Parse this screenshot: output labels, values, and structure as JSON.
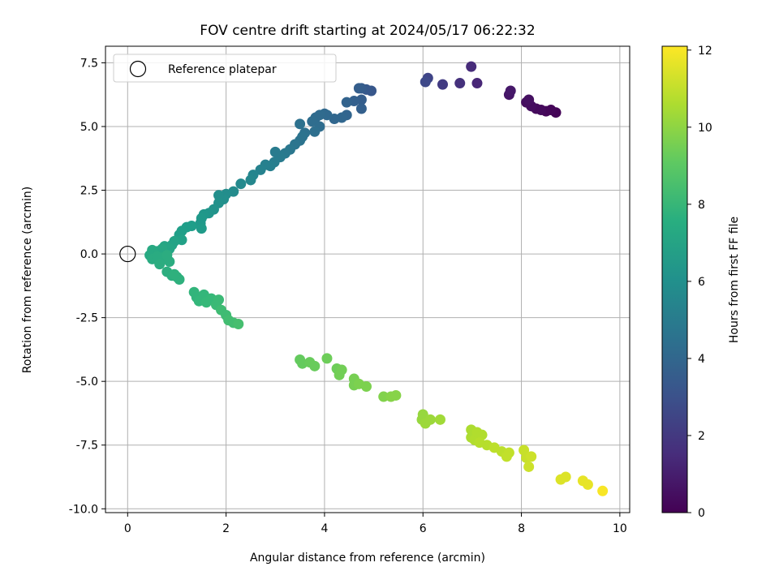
{
  "chart_data": {
    "type": "scatter",
    "title": "FOV centre drift starting at 2024/05/17 06:22:32",
    "xlabel": "Angular distance from reference (arcmin)",
    "ylabel": "Rotation from reference (arcmin)",
    "xlim": [
      -0.45,
      10.2
    ],
    "ylim": [
      -10.15,
      8.15
    ],
    "xticks": [
      0,
      2,
      4,
      6,
      8,
      10
    ],
    "yticks": [
      -10.0,
      -7.5,
      -5.0,
      -2.5,
      0.0,
      2.5,
      5.0,
      7.5
    ],
    "grid": true,
    "legend": {
      "position": "top-left",
      "entries": [
        "Reference platepar"
      ]
    },
    "reference_point": {
      "x": 0,
      "y": 0
    },
    "colorbar": {
      "label": "Hours from first FF file",
      "colormap": "viridis",
      "range": [
        0,
        12.1
      ],
      "ticks": [
        0,
        2,
        4,
        6,
        8,
        10,
        12
      ]
    },
    "series": [
      {
        "values": [
          {
            "x": 8.7,
            "y": 5.55,
            "c": 0.1
          },
          {
            "x": 8.6,
            "y": 5.65,
            "c": 0.2
          },
          {
            "x": 8.5,
            "y": 5.6,
            "c": 0.2
          },
          {
            "x": 8.4,
            "y": 5.65,
            "c": 0.3
          },
          {
            "x": 8.3,
            "y": 5.7,
            "c": 0.3
          },
          {
            "x": 8.2,
            "y": 5.8,
            "c": 0.4
          },
          {
            "x": 8.1,
            "y": 5.95,
            "c": 0.4
          },
          {
            "x": 8.15,
            "y": 6.05,
            "c": 0.5
          },
          {
            "x": 7.75,
            "y": 6.25,
            "c": 0.7
          },
          {
            "x": 7.78,
            "y": 6.4,
            "c": 0.8
          },
          {
            "x": 7.1,
            "y": 6.7,
            "c": 1.3
          },
          {
            "x": 6.98,
            "y": 7.35,
            "c": 1.5
          },
          {
            "x": 6.75,
            "y": 6.7,
            "c": 1.7
          },
          {
            "x": 6.4,
            "y": 6.65,
            "c": 2.1
          },
          {
            "x": 6.1,
            "y": 6.9,
            "c": 2.5
          },
          {
            "x": 6.05,
            "y": 6.75,
            "c": 2.7
          },
          {
            "x": 4.95,
            "y": 6.4,
            "c": 3.3
          },
          {
            "x": 4.85,
            "y": 6.45,
            "c": 3.4
          },
          {
            "x": 4.75,
            "y": 6.5,
            "c": 3.5
          },
          {
            "x": 4.7,
            "y": 6.5,
            "c": 3.6
          },
          {
            "x": 4.75,
            "y": 6.05,
            "c": 3.6
          },
          {
            "x": 4.75,
            "y": 5.7,
            "c": 3.7
          },
          {
            "x": 4.6,
            "y": 6.0,
            "c": 3.7
          },
          {
            "x": 4.45,
            "y": 5.95,
            "c": 3.8
          },
          {
            "x": 4.45,
            "y": 5.45,
            "c": 3.9
          },
          {
            "x": 4.35,
            "y": 5.35,
            "c": 4.0
          },
          {
            "x": 4.2,
            "y": 5.3,
            "c": 4.0
          },
          {
            "x": 4.05,
            "y": 5.45,
            "c": 4.1
          },
          {
            "x": 4.0,
            "y": 5.5,
            "c": 4.1
          },
          {
            "x": 3.9,
            "y": 5.45,
            "c": 4.2
          },
          {
            "x": 3.82,
            "y": 5.35,
            "c": 4.2
          },
          {
            "x": 3.75,
            "y": 5.2,
            "c": 4.3
          },
          {
            "x": 3.9,
            "y": 5.0,
            "c": 4.3
          },
          {
            "x": 3.8,
            "y": 4.8,
            "c": 4.4
          },
          {
            "x": 3.6,
            "y": 4.75,
            "c": 4.5
          },
          {
            "x": 3.5,
            "y": 5.1,
            "c": 4.5
          },
          {
            "x": 3.55,
            "y": 4.6,
            "c": 4.6
          },
          {
            "x": 3.5,
            "y": 4.45,
            "c": 4.6
          },
          {
            "x": 3.4,
            "y": 4.3,
            "c": 4.7
          },
          {
            "x": 3.3,
            "y": 4.1,
            "c": 4.8
          },
          {
            "x": 3.2,
            "y": 3.95,
            "c": 4.9
          },
          {
            "x": 3.1,
            "y": 3.8,
            "c": 5.0
          },
          {
            "x": 3.0,
            "y": 4.0,
            "c": 5.0
          },
          {
            "x": 2.98,
            "y": 3.6,
            "c": 5.1
          },
          {
            "x": 2.9,
            "y": 3.45,
            "c": 5.2
          },
          {
            "x": 2.8,
            "y": 3.5,
            "c": 5.3
          },
          {
            "x": 2.7,
            "y": 3.3,
            "c": 5.4
          },
          {
            "x": 2.55,
            "y": 3.1,
            "c": 5.5
          },
          {
            "x": 2.5,
            "y": 2.9,
            "c": 5.6
          },
          {
            "x": 2.3,
            "y": 2.75,
            "c": 5.7
          },
          {
            "x": 2.15,
            "y": 2.45,
            "c": 5.8
          },
          {
            "x": 2.0,
            "y": 2.35,
            "c": 5.9
          },
          {
            "x": 1.95,
            "y": 2.15,
            "c": 6.0
          },
          {
            "x": 1.85,
            "y": 2.3,
            "c": 6.0
          },
          {
            "x": 1.85,
            "y": 2.0,
            "c": 6.1
          },
          {
            "x": 1.75,
            "y": 1.75,
            "c": 6.2
          },
          {
            "x": 1.65,
            "y": 1.6,
            "c": 6.3
          },
          {
            "x": 1.55,
            "y": 1.55,
            "c": 6.4
          },
          {
            "x": 1.5,
            "y": 1.4,
            "c": 6.5
          },
          {
            "x": 1.48,
            "y": 1.2,
            "c": 6.5
          },
          {
            "x": 1.5,
            "y": 1.0,
            "c": 6.6
          },
          {
            "x": 1.3,
            "y": 1.1,
            "c": 6.7
          },
          {
            "x": 1.2,
            "y": 1.05,
            "c": 6.7
          },
          {
            "x": 1.1,
            "y": 0.9,
            "c": 6.8
          },
          {
            "x": 1.05,
            "y": 0.75,
            "c": 6.8
          },
          {
            "x": 1.1,
            "y": 0.55,
            "c": 6.9
          },
          {
            "x": 0.95,
            "y": 0.5,
            "c": 7.0
          },
          {
            "x": 0.9,
            "y": 0.35,
            "c": 7.0
          },
          {
            "x": 0.85,
            "y": 0.2,
            "c": 7.1
          },
          {
            "x": 0.75,
            "y": 0.3,
            "c": 7.1
          },
          {
            "x": 0.7,
            "y": 0.2,
            "c": 7.2
          },
          {
            "x": 0.6,
            "y": 0.1,
            "c": 7.2
          },
          {
            "x": 0.55,
            "y": 0.0,
            "c": 7.3
          },
          {
            "x": 0.5,
            "y": 0.15,
            "c": 7.3
          },
          {
            "x": 0.45,
            "y": -0.05,
            "c": 7.3
          },
          {
            "x": 0.5,
            "y": -0.2,
            "c": 7.4
          },
          {
            "x": 0.6,
            "y": -0.1,
            "c": 7.4
          },
          {
            "x": 0.7,
            "y": -0.15,
            "c": 7.4
          },
          {
            "x": 0.8,
            "y": -0.05,
            "c": 7.5
          },
          {
            "x": 0.85,
            "y": -0.3,
            "c": 7.5
          },
          {
            "x": 0.65,
            "y": -0.4,
            "c": 7.5
          },
          {
            "x": 0.8,
            "y": -0.7,
            "c": 7.6
          },
          {
            "x": 0.9,
            "y": -0.85,
            "c": 7.6
          },
          {
            "x": 1.0,
            "y": -0.9,
            "c": 7.7
          },
          {
            "x": 1.05,
            "y": -1.0,
            "c": 7.7
          },
          {
            "x": 0.95,
            "y": -0.8,
            "c": 7.7
          },
          {
            "x": 1.35,
            "y": -1.5,
            "c": 7.9
          },
          {
            "x": 1.4,
            "y": -1.7,
            "c": 7.9
          },
          {
            "x": 1.45,
            "y": -1.85,
            "c": 8.0
          },
          {
            "x": 1.55,
            "y": -1.6,
            "c": 8.0
          },
          {
            "x": 1.6,
            "y": -1.9,
            "c": 8.1
          },
          {
            "x": 1.7,
            "y": -1.75,
            "c": 8.1
          },
          {
            "x": 1.8,
            "y": -2.0,
            "c": 8.2
          },
          {
            "x": 1.85,
            "y": -1.8,
            "c": 8.2
          },
          {
            "x": 1.9,
            "y": -2.2,
            "c": 8.3
          },
          {
            "x": 2.0,
            "y": -2.4,
            "c": 8.3
          },
          {
            "x": 2.05,
            "y": -2.6,
            "c": 8.4
          },
          {
            "x": 2.15,
            "y": -2.7,
            "c": 8.4
          },
          {
            "x": 2.25,
            "y": -2.75,
            "c": 8.5
          },
          {
            "x": 3.5,
            "y": -4.15,
            "c": 9.2
          },
          {
            "x": 3.55,
            "y": -4.3,
            "c": 9.2
          },
          {
            "x": 3.7,
            "y": -4.25,
            "c": 9.3
          },
          {
            "x": 3.8,
            "y": -4.4,
            "c": 9.3
          },
          {
            "x": 4.05,
            "y": -4.1,
            "c": 9.4
          },
          {
            "x": 4.25,
            "y": -4.5,
            "c": 9.4
          },
          {
            "x": 4.35,
            "y": -4.55,
            "c": 9.5
          },
          {
            "x": 4.3,
            "y": -4.75,
            "c": 9.5
          },
          {
            "x": 4.6,
            "y": -4.9,
            "c": 9.6
          },
          {
            "x": 4.6,
            "y": -5.15,
            "c": 9.6
          },
          {
            "x": 4.7,
            "y": -5.1,
            "c": 9.7
          },
          {
            "x": 4.85,
            "y": -5.2,
            "c": 9.7
          },
          {
            "x": 5.2,
            "y": -5.6,
            "c": 9.8
          },
          {
            "x": 5.35,
            "y": -5.6,
            "c": 9.9
          },
          {
            "x": 5.45,
            "y": -5.55,
            "c": 9.9
          },
          {
            "x": 6.0,
            "y": -6.3,
            "c": 10.2
          },
          {
            "x": 5.98,
            "y": -6.5,
            "c": 10.2
          },
          {
            "x": 6.05,
            "y": -6.65,
            "c": 10.3
          },
          {
            "x": 6.15,
            "y": -6.5,
            "c": 10.3
          },
          {
            "x": 6.35,
            "y": -6.5,
            "c": 10.4
          },
          {
            "x": 6.98,
            "y": -6.9,
            "c": 10.6
          },
          {
            "x": 6.98,
            "y": -7.2,
            "c": 10.6
          },
          {
            "x": 7.05,
            "y": -7.3,
            "c": 10.7
          },
          {
            "x": 7.1,
            "y": -7.0,
            "c": 10.7
          },
          {
            "x": 7.2,
            "y": -7.1,
            "c": 10.7
          },
          {
            "x": 7.15,
            "y": -7.4,
            "c": 10.8
          },
          {
            "x": 7.3,
            "y": -7.5,
            "c": 10.8
          },
          {
            "x": 7.45,
            "y": -7.6,
            "c": 10.9
          },
          {
            "x": 7.6,
            "y": -7.75,
            "c": 10.9
          },
          {
            "x": 7.75,
            "y": -7.8,
            "c": 11.0
          },
          {
            "x": 7.7,
            "y": -7.95,
            "c": 11.0
          },
          {
            "x": 8.05,
            "y": -7.7,
            "c": 11.1
          },
          {
            "x": 8.1,
            "y": -8.0,
            "c": 11.1
          },
          {
            "x": 8.2,
            "y": -7.95,
            "c": 11.2
          },
          {
            "x": 8.15,
            "y": -8.35,
            "c": 11.2
          },
          {
            "x": 8.8,
            "y": -8.85,
            "c": 11.5
          },
          {
            "x": 8.9,
            "y": -8.75,
            "c": 11.5
          },
          {
            "x": 9.25,
            "y": -8.9,
            "c": 11.7
          },
          {
            "x": 9.35,
            "y": -9.05,
            "c": 11.7
          },
          {
            "x": 9.65,
            "y": -9.3,
            "c": 12.0
          }
        ]
      }
    ]
  }
}
